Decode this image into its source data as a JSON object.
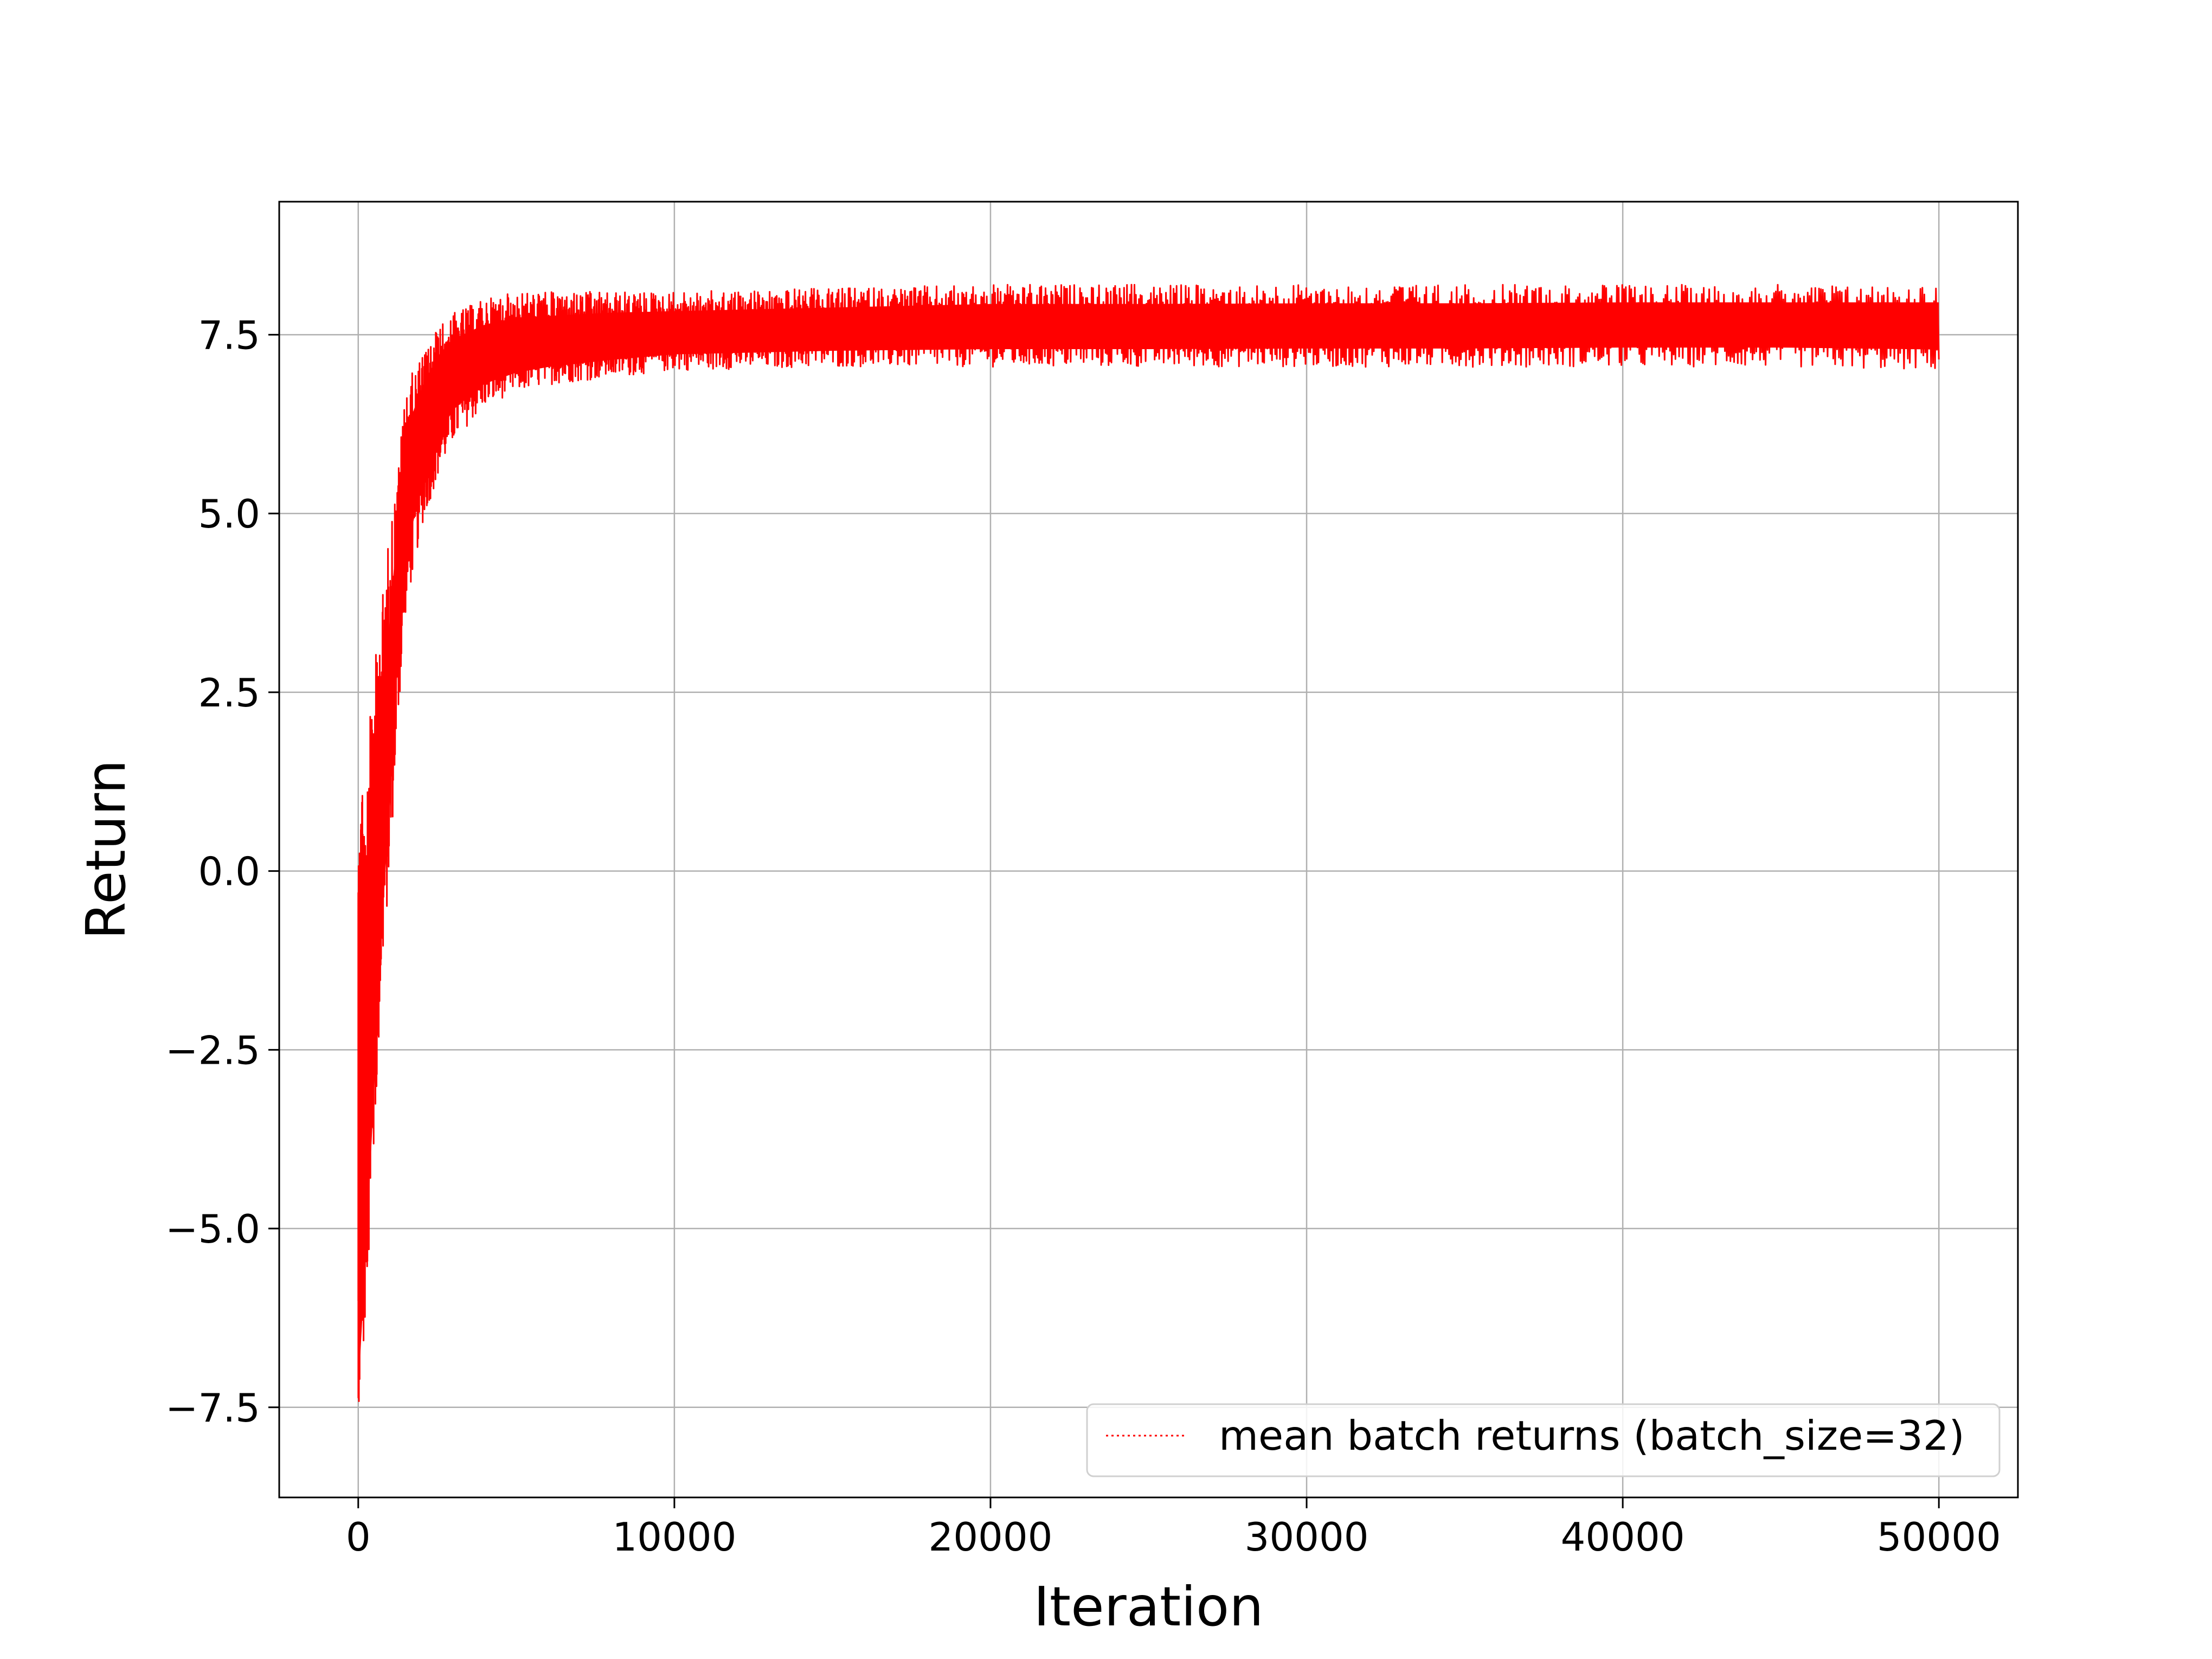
{
  "chart_data": {
    "type": "line",
    "title": "",
    "xlabel": "Iteration",
    "ylabel": "Return",
    "xlim": [
      -2500,
      52500
    ],
    "ylim": [
      -8.76,
      9.36
    ],
    "x_ticks": [
      0,
      10000,
      20000,
      30000,
      40000,
      50000
    ],
    "x_tick_labels": [
      "0",
      "10000",
      "20000",
      "30000",
      "40000",
      "50000"
    ],
    "y_ticks": [
      -7.5,
      -5.0,
      -2.5,
      0.0,
      2.5,
      5.0,
      7.5
    ],
    "y_tick_labels": [
      "−7.5",
      "−5.0",
      "−2.5",
      "0.0",
      "2.5",
      "5.0",
      "7.5"
    ],
    "grid": true,
    "legend_position": "lower-right",
    "colors": {
      "series": "#ff0000",
      "grid": "#b0b0b0",
      "axes": "#000000"
    },
    "series": [
      {
        "name": "mean batch returns (batch_size=32)",
        "line_style": "dotted",
        "x": [
          0,
          250,
          500,
          750,
          1000,
          1250,
          1500,
          2000,
          2500,
          3000,
          4000,
          5000,
          6000,
          8000,
          10000,
          15000,
          20000,
          25000,
          30000,
          35000,
          40000,
          45000,
          50000
        ],
        "y": [
          -6.5,
          -4.5,
          -2.0,
          0.2,
          2.0,
          4.0,
          5.3,
          6.2,
          6.7,
          7.0,
          7.2,
          7.3,
          7.35,
          7.45,
          7.5,
          7.55,
          7.6,
          7.6,
          7.62,
          7.62,
          7.65,
          7.65,
          7.65
        ],
        "band_low": [
          -7.9,
          -6.0,
          -4.0,
          -1.5,
          0.0,
          2.0,
          3.6,
          4.8,
          5.5,
          6.0,
          6.5,
          6.7,
          6.8,
          6.9,
          7.0,
          7.05,
          7.05,
          7.05,
          7.05,
          7.05,
          7.05,
          7.05,
          7.0
        ],
        "band_high": [
          0.6,
          1.5,
          2.8,
          3.8,
          4.8,
          5.6,
          6.8,
          7.2,
          7.6,
          7.8,
          8.0,
          8.1,
          8.1,
          8.1,
          8.1,
          8.15,
          8.2,
          8.2,
          8.2,
          8.2,
          8.2,
          8.2,
          8.2
        ]
      }
    ]
  }
}
